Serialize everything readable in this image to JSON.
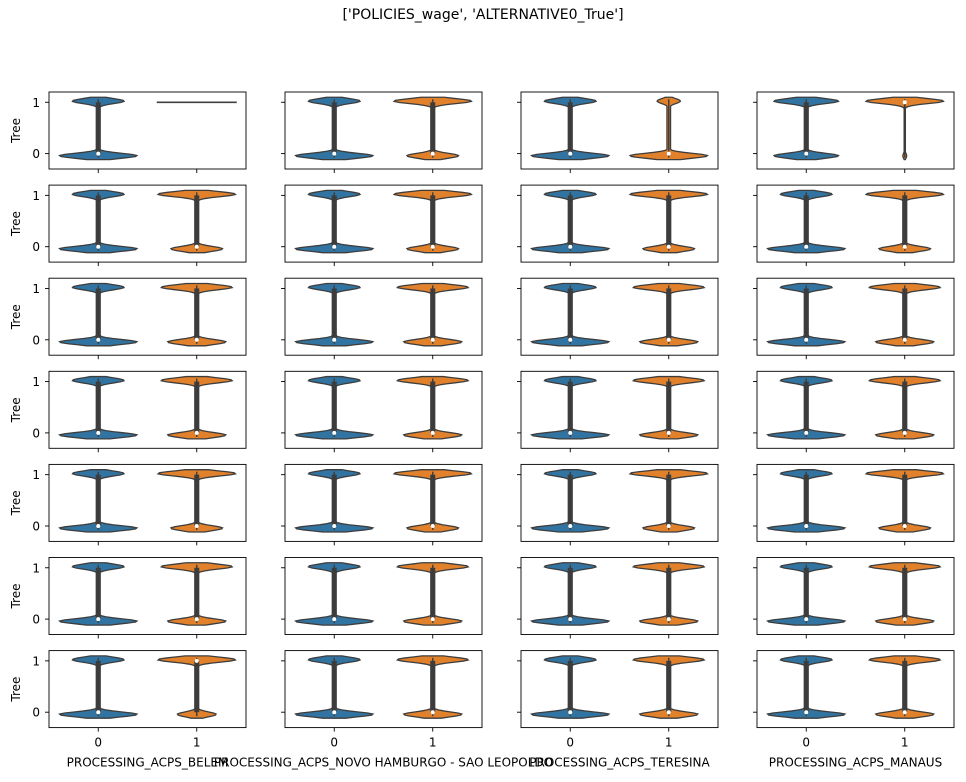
{
  "suptitle": "['POLICIES_wage', 'ALTERNATIVE0_True']",
  "chart_data": {
    "type": "violin",
    "grid": false,
    "legend": "none",
    "rows": 7,
    "cols": 4,
    "ylabel": "Tree",
    "yticks": [
      0,
      1
    ],
    "ylim": [
      -0.3,
      1.2
    ],
    "categories": [
      "0",
      "1"
    ],
    "category_colors": [
      "#3274a1",
      "#e1812c"
    ],
    "column_xlabels": [
      "PROCESSING_ACPS_BELEM",
      "PROCESSING_ACPS_NOVO HAMBURGO - SAO LEOPOLDO",
      "PROCESSING_ACPS_TERESINA",
      "PROCESSING_ACPS_MANAUS"
    ],
    "panels": [
      [
        {
          "c0": {
            "p1": 0.4,
            "median": 0
          },
          "c1": {
            "kind": "line",
            "value": 1
          }
        },
        {
          "c0": {
            "p1": 0.4,
            "median": 0
          },
          "c1": {
            "p1": 0.6,
            "median": 0
          }
        },
        {
          "c0": {
            "p1": 0.4,
            "median": 0
          },
          "c1": {
            "p1": 0.18,
            "median": 0
          }
        },
        {
          "c0": {
            "p1": 0.5,
            "median": 0
          },
          "c1": {
            "p1": 0.97,
            "median": 1,
            "thin": true
          }
        }
      ],
      [
        {
          "c0": {
            "p1": 0.4,
            "median": 0
          },
          "c1": {
            "p1": 0.6,
            "median": 0
          }
        },
        {
          "c0": {
            "p1": 0.4,
            "median": 0
          },
          "c1": {
            "p1": 0.6,
            "median": 0
          }
        },
        {
          "c0": {
            "p1": 0.4,
            "median": 0
          },
          "c1": {
            "p1": 0.6,
            "median": 0
          }
        },
        {
          "c0": {
            "p1": 0.4,
            "median": 0
          },
          "c1": {
            "p1": 0.6,
            "median": 0
          }
        }
      ],
      [
        {
          "c0": {
            "p1": 0.4,
            "median": 0
          },
          "c1": {
            "p1": 0.55,
            "median": 0
          }
        },
        {
          "c0": {
            "p1": 0.4,
            "median": 0
          },
          "c1": {
            "p1": 0.55,
            "median": 0
          }
        },
        {
          "c0": {
            "p1": 0.4,
            "median": 0
          },
          "c1": {
            "p1": 0.55,
            "median": 0
          }
        },
        {
          "c0": {
            "p1": 0.4,
            "median": 0
          },
          "c1": {
            "p1": 0.55,
            "median": 0
          }
        }
      ],
      [
        {
          "c0": {
            "p1": 0.4,
            "median": 0
          },
          "c1": {
            "p1": 0.55,
            "median": 0
          }
        },
        {
          "c0": {
            "p1": 0.4,
            "median": 0
          },
          "c1": {
            "p1": 0.55,
            "median": 0
          }
        },
        {
          "c0": {
            "p1": 0.4,
            "median": 0
          },
          "c1": {
            "p1": 0.55,
            "median": 0
          }
        },
        {
          "c0": {
            "p1": 0.4,
            "median": 0
          },
          "c1": {
            "p1": 0.55,
            "median": 0
          }
        }
      ],
      [
        {
          "c0": {
            "p1": 0.4,
            "median": 0
          },
          "c1": {
            "p1": 0.6,
            "median": 0
          }
        },
        {
          "c0": {
            "p1": 0.4,
            "median": 0
          },
          "c1": {
            "p1": 0.6,
            "median": 0
          }
        },
        {
          "c0": {
            "p1": 0.4,
            "median": 0
          },
          "c1": {
            "p1": 0.6,
            "median": 0
          }
        },
        {
          "c0": {
            "p1": 0.4,
            "median": 0
          },
          "c1": {
            "p1": 0.6,
            "median": 0
          }
        }
      ],
      [
        {
          "c0": {
            "p1": 0.4,
            "median": 0
          },
          "c1": {
            "p1": 0.55,
            "median": 0
          }
        },
        {
          "c0": {
            "p1": 0.4,
            "median": 0
          },
          "c1": {
            "p1": 0.55,
            "median": 0
          }
        },
        {
          "c0": {
            "p1": 0.4,
            "median": 0
          },
          "c1": {
            "p1": 0.55,
            "median": 0
          }
        },
        {
          "c0": {
            "p1": 0.4,
            "median": 0
          },
          "c1": {
            "p1": 0.55,
            "median": 0
          }
        }
      ],
      [
        {
          "c0": {
            "p1": 0.4,
            "median": 0
          },
          "c1": {
            "p1": 0.7,
            "median": 1
          }
        },
        {
          "c0": {
            "p1": 0.4,
            "median": 0
          },
          "c1": {
            "p1": 0.55,
            "median": 0
          }
        },
        {
          "c0": {
            "p1": 0.4,
            "median": 0
          },
          "c1": {
            "p1": 0.55,
            "median": 0
          }
        },
        {
          "c0": {
            "p1": 0.4,
            "median": 0
          },
          "c1": {
            "p1": 0.55,
            "median": 0
          }
        }
      ]
    ]
  }
}
